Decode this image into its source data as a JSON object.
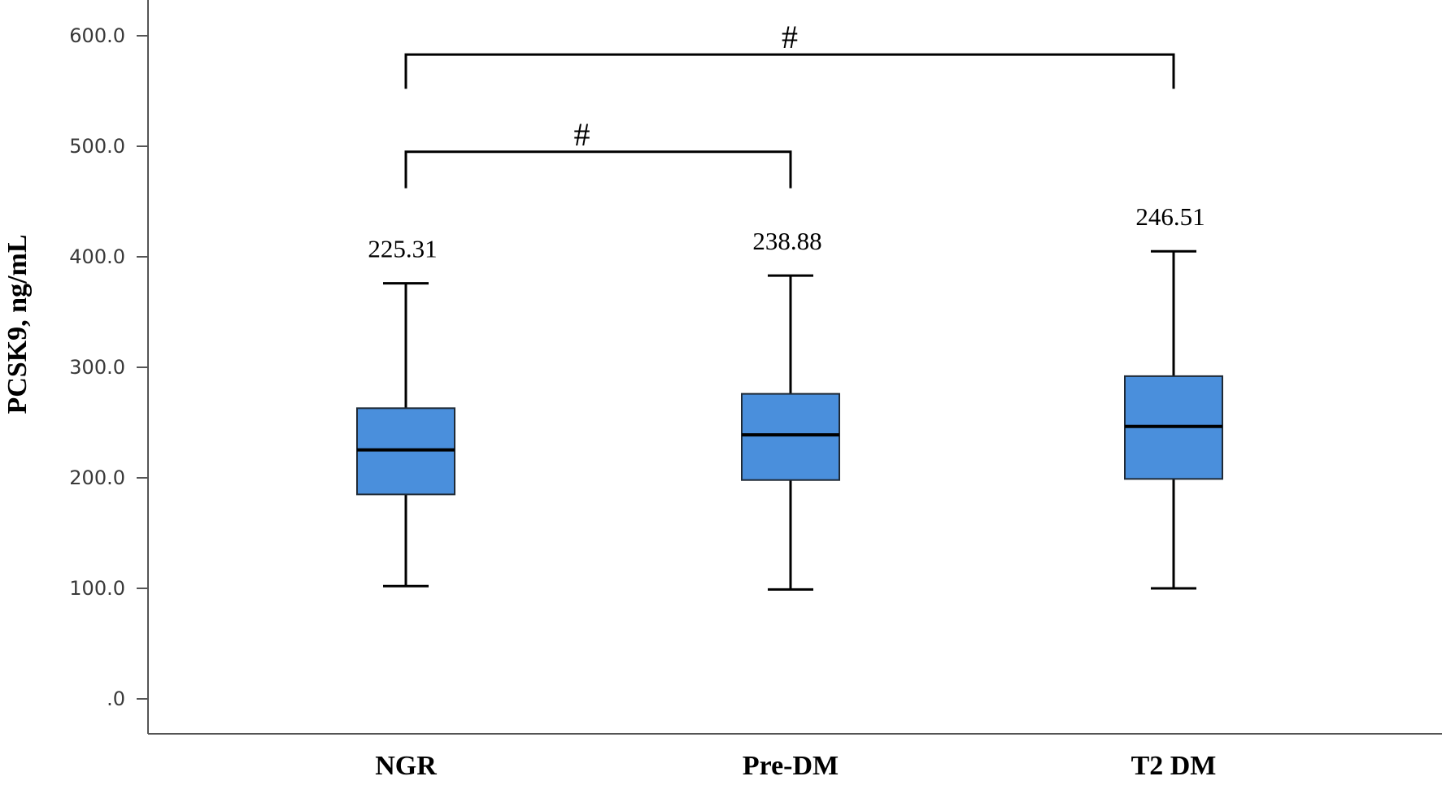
{
  "chart_data": {
    "type": "box",
    "ylabel": "PCSK9, ng/mL",
    "xlabel": "",
    "ylim": [
      0,
      600
    ],
    "yticks": [
      0,
      100,
      200,
      300,
      400,
      500,
      600
    ],
    "ytick_labels": [
      ".0",
      "100.0",
      "200.0",
      "300.0",
      "400.0",
      "500.0",
      "600.0"
    ],
    "grid": false,
    "box_color": "#4a8fdc",
    "categories": [
      "NGR",
      "Pre-DM",
      "T2 DM"
    ],
    "boxes": [
      {
        "category": "NGR",
        "min": 102,
        "q1": 185,
        "median": 225.31,
        "q3": 263,
        "max": 376,
        "median_label": "225.31"
      },
      {
        "category": "Pre-DM",
        "min": 99,
        "q1": 198,
        "median": 238.88,
        "q3": 276,
        "max": 383,
        "median_label": "238.88"
      },
      {
        "category": "T2 DM",
        "min": 100,
        "q1": 199,
        "median": 246.51,
        "q3": 292,
        "max": 405,
        "median_label": "246.51"
      }
    ],
    "significance": [
      {
        "from": "NGR",
        "to": "T2 DM",
        "label": "#",
        "y": 583,
        "drop_to": 552
      },
      {
        "from": "NGR",
        "to": "Pre-DM",
        "label": "#",
        "y": 495,
        "drop_to": 462
      }
    ]
  }
}
